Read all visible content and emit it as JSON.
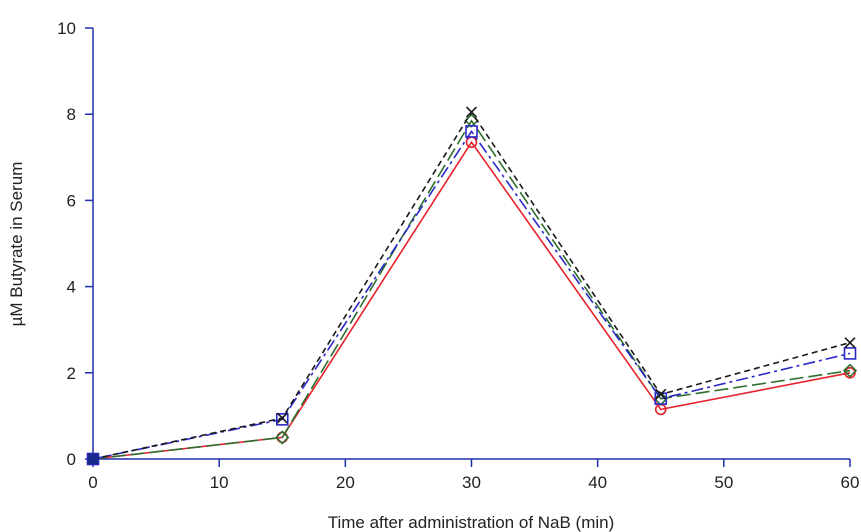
{
  "chart_data": {
    "type": "line",
    "title": "",
    "xlabel": "Time after administration of NaB (min)",
    "ylabel": "µM Butyrate in Serum",
    "xlim": [
      0,
      60
    ],
    "ylim": [
      0,
      10
    ],
    "x_ticks": [
      "0",
      "10",
      "20",
      "30",
      "40",
      "50",
      "60"
    ],
    "y_ticks": [
      "0",
      "2",
      "4",
      "6",
      "8",
      "10"
    ],
    "grid": false,
    "legend": "none",
    "x": [
      0,
      15,
      30,
      45,
      60
    ],
    "series": [
      {
        "values": [
          0,
          0.5,
          7.35,
          1.15,
          2.0
        ],
        "color": "#e8212a",
        "dash": "solid",
        "marker": "circle"
      },
      {
        "values": [
          0,
          0.5,
          7.85,
          1.4,
          2.05
        ],
        "color": "#2e6e2e",
        "dash": "longdash",
        "marker": "diamond"
      },
      {
        "values": [
          0,
          0.92,
          7.6,
          1.4,
          2.45
        ],
        "color": "#2929c8",
        "dash": "dashdot",
        "marker": "square"
      },
      {
        "values": [
          0,
          0.95,
          8.05,
          1.5,
          2.7
        ],
        "color": "#1a1a1a",
        "dash": "shortdash",
        "marker": "x"
      }
    ],
    "axis_color": "#1f2fa8"
  }
}
